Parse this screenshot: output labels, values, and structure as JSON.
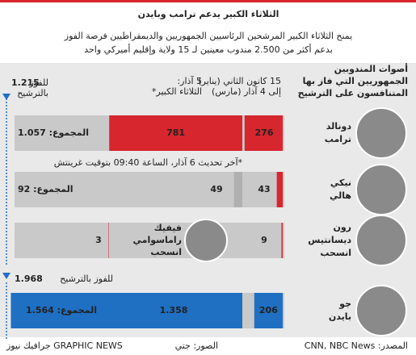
{
  "title": "الثلاثاء الكبير يدعم ترامب وبايدن",
  "subtitle": [
    "يمنح الثلاثاء الكبير المرشحين الرئاسيين الجمهوريين والديمقراطيين فرصة الفوز",
    "بدعم أكثر من 2.500 مندوب معينين لـ 15 ولاية وإقليم أميركي واحد"
  ],
  "republican": {
    "header": [
      "أصوات المندوبين",
      "الجمهوريين التي فاز بها",
      "المتنافسون على الترشيح"
    ],
    "column_before": [
      "15 كانون الثاني (يناير)",
      "إلى 4 آذار (مارس)"
    ],
    "column_super": [
      "5 آذار:",
      "الثلاثاء الكبير*"
    ],
    "threshold": {
      "value": 1215,
      "label": "1.215"
    },
    "threshold_text": [
      "للفوز",
      "بالترشيح"
    ],
    "candidates": [
      {
        "name": [
          "دونالد",
          "ترامب"
        ],
        "before": 276,
        "super": 781,
        "total": "المجموع: 1.057"
      },
      {
        "name": [
          "نيكي",
          "هالي"
        ],
        "before": 43,
        "super": 49,
        "total": "المجموع: 92"
      },
      {
        "name": [
          "رون",
          "ديسانتيس",
          "انسحب"
        ],
        "before": 9
      }
    ],
    "ramaswamy": {
      "name": [
        "فيفيك",
        "راماسوامي",
        "انسحب"
      ],
      "delegates": 3
    },
    "footnote": "*آخر تحديث 6 آذار، الساعة 09:40 بتوقيت غرينتش"
  },
  "democrat": {
    "threshold": {
      "value": 1968,
      "label": "1.968"
    },
    "threshold_text": "للفوز بالترشيح",
    "candidate": {
      "name": [
        "جو",
        "بايدن"
      ],
      "before": 206,
      "super": {
        "value": 1358,
        "label": "1.358"
      },
      "total": "المجموع: 1.564"
    }
  },
  "footer": {
    "source": "المصدر: CNN, NBC News",
    "photos": "الصور: جتي",
    "credit": "GRAPHIC NEWS جرافيك نيوز"
  }
}
